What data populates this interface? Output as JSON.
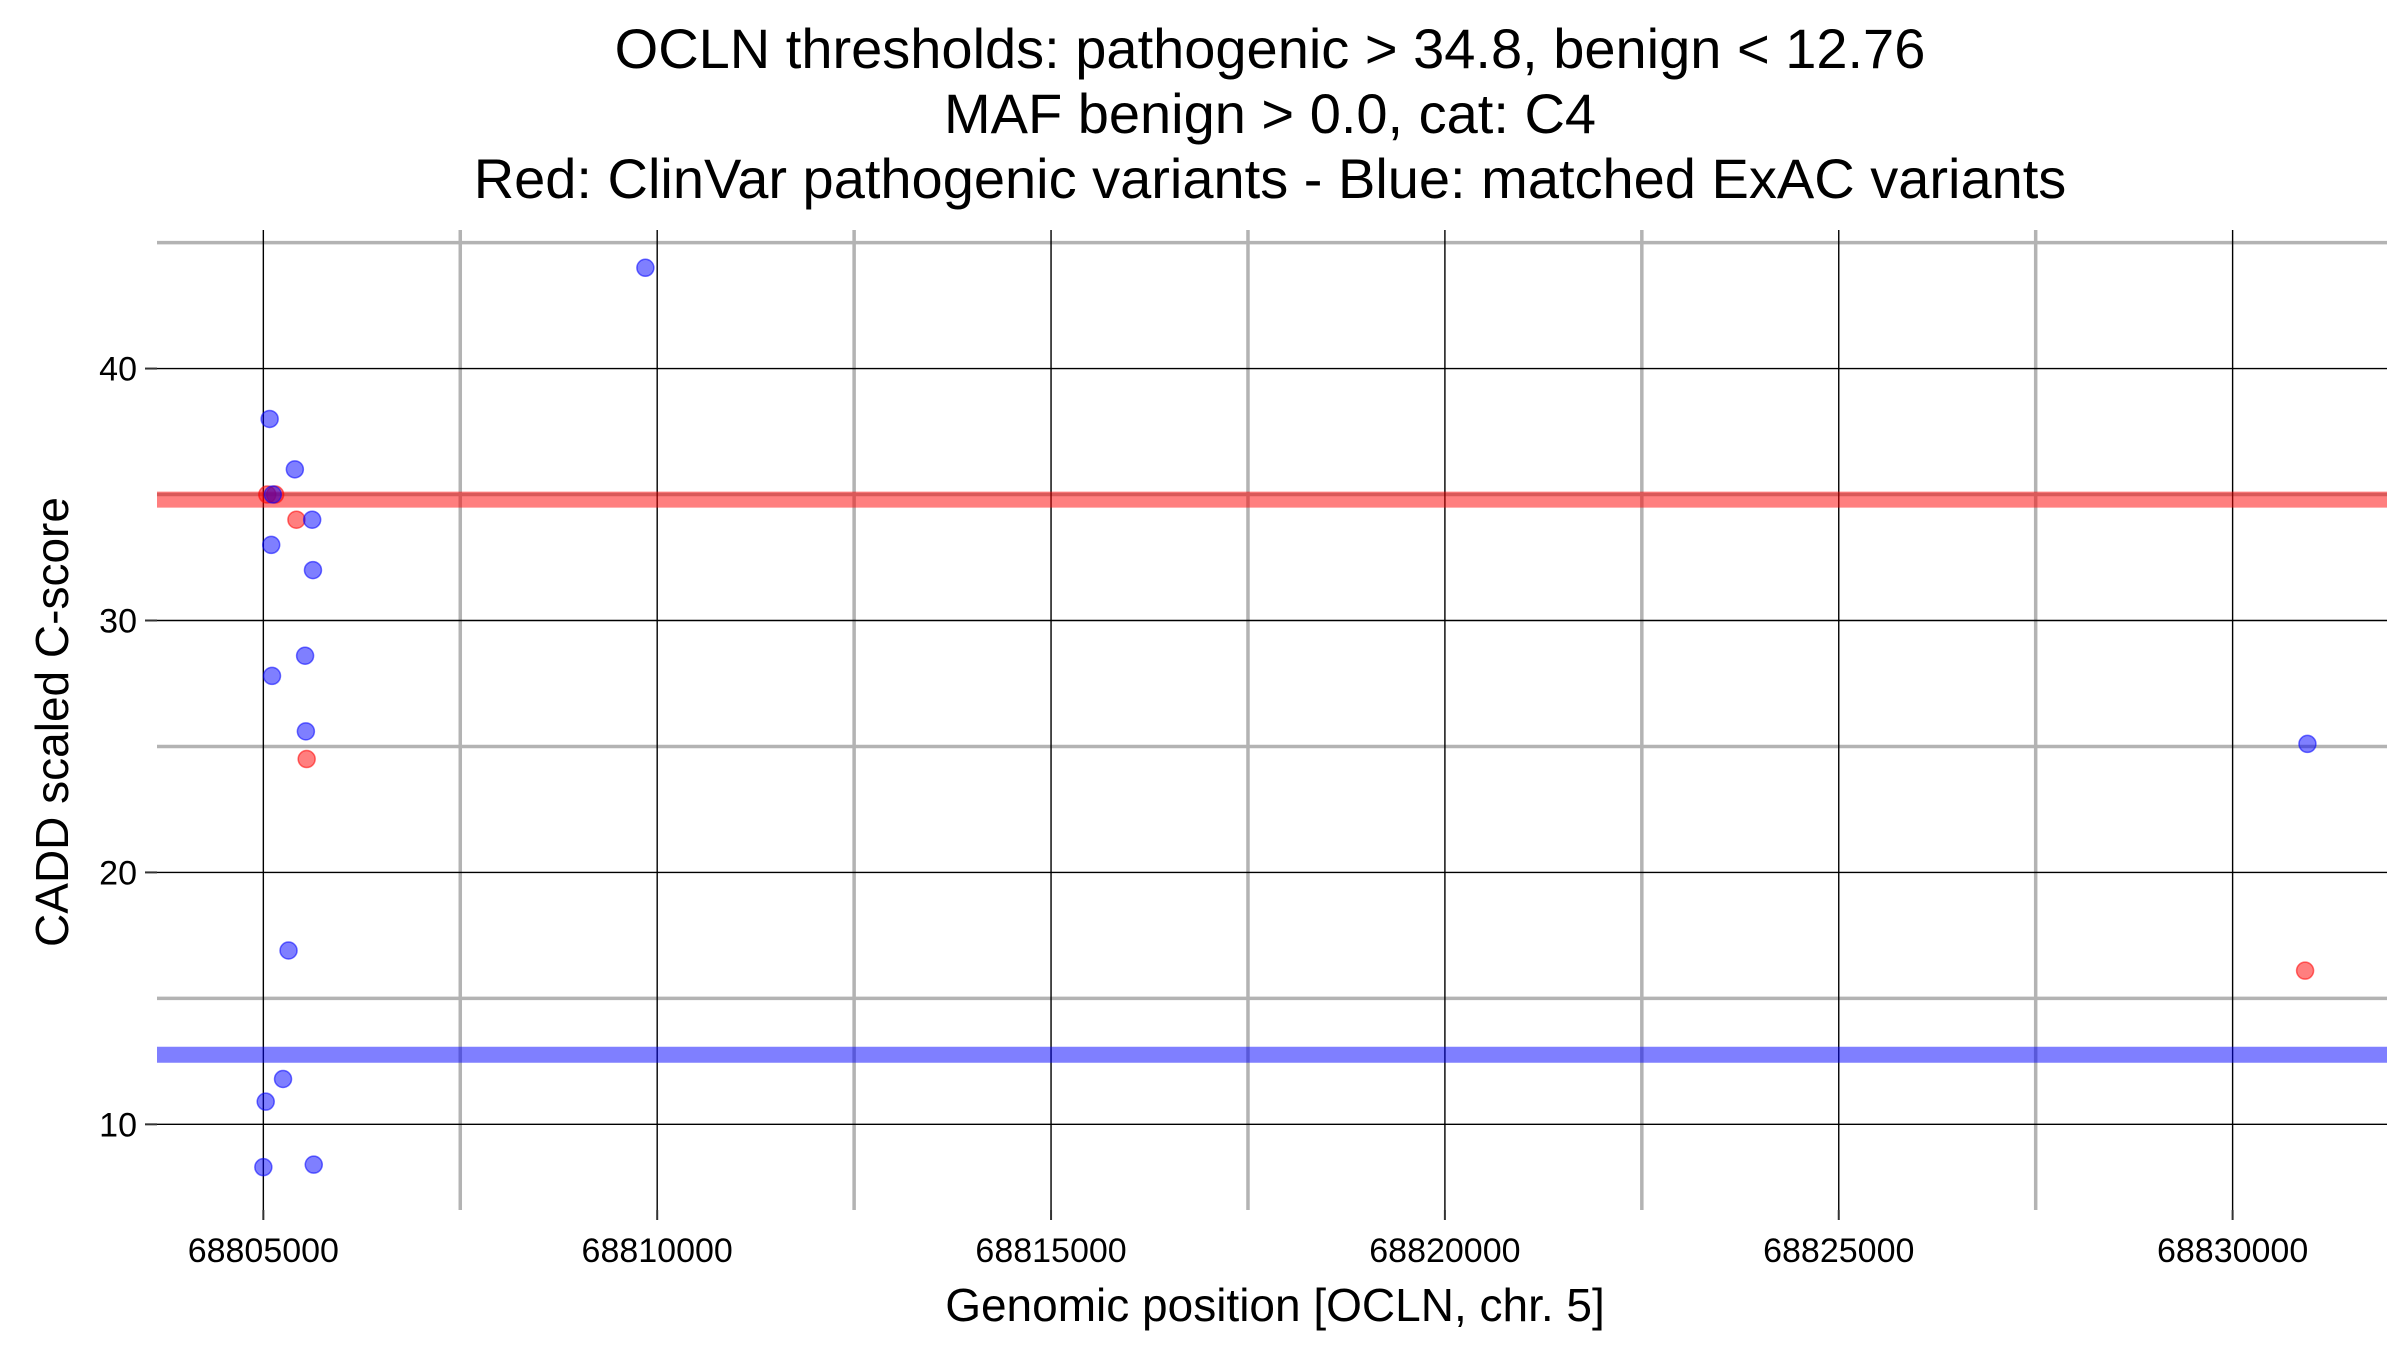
{
  "chart_data": {
    "type": "scatter",
    "title_lines": [
      "OCLN thresholds: pathogenic > 34.8, benign < 12.76",
      "MAF benign > 0.0, cat: C4",
      "Red: ClinVar pathogenic variants - Blue: matched ExAC variants"
    ],
    "xlabel": "Genomic position [OCLN, chr. 5]",
    "ylabel": "CADD scaled C-score",
    "xlim": [
      68803650,
      68831960
    ],
    "ylim": [
      6.6,
      45.5
    ],
    "x_ticks": [
      68805000,
      68810000,
      68815000,
      68820000,
      68825000,
      68830000
    ],
    "y_ticks": [
      10,
      20,
      30,
      40
    ],
    "x_minor_grid": [
      68807500,
      68812500,
      68817500,
      68822500,
      68827500
    ],
    "y_minor_grid": [
      15,
      25,
      35,
      45
    ],
    "grid": true,
    "thresholds": [
      {
        "value": 34.8,
        "color": "#ff0000"
      },
      {
        "value": 12.76,
        "color": "#0000ff"
      }
    ],
    "series": [
      {
        "color": "#ff0000",
        "points": [
          {
            "x": 68805050,
            "y": 35.0
          },
          {
            "x": 68805150,
            "y": 35.0
          },
          {
            "x": 68805420,
            "y": 34.0
          },
          {
            "x": 68805550,
            "y": 24.5
          },
          {
            "x": 68830920,
            "y": 16.1
          }
        ]
      },
      {
        "color": "#0000ff",
        "points": [
          {
            "x": 68805000,
            "y": 8.3
          },
          {
            "x": 68805030,
            "y": 10.9
          },
          {
            "x": 68805080,
            "y": 38.0
          },
          {
            "x": 68805100,
            "y": 33.0
          },
          {
            "x": 68805110,
            "y": 27.8
          },
          {
            "x": 68805120,
            "y": 35.0
          },
          {
            "x": 68805250,
            "y": 11.8
          },
          {
            "x": 68805320,
            "y": 16.9
          },
          {
            "x": 68805400,
            "y": 36.0
          },
          {
            "x": 68805530,
            "y": 28.6
          },
          {
            "x": 68805540,
            "y": 25.6
          },
          {
            "x": 68805620,
            "y": 34.0
          },
          {
            "x": 68805630,
            "y": 32.0
          },
          {
            "x": 68805640,
            "y": 8.4
          },
          {
            "x": 68809850,
            "y": 44.0
          },
          {
            "x": 68830950,
            "y": 25.1
          }
        ]
      }
    ]
  }
}
